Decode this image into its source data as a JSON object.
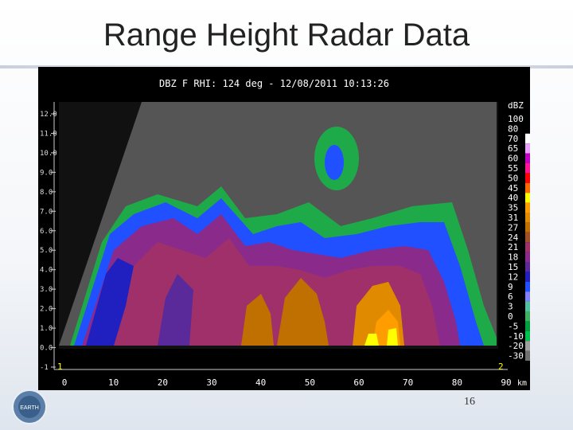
{
  "slide": {
    "title": "Range Height Radar Data",
    "page_number": "16",
    "logo_text": "EARTH"
  },
  "radar": {
    "header": "DBZ F  RHI: 124 deg  -  12/08/2011 10:13:26",
    "y_labels": [
      "12.0",
      "11.0",
      "10.0",
      "9.0",
      "8.0",
      "7.0",
      "6.0",
      "5.0",
      "4.0",
      "3.0",
      "2.0",
      "1.0",
      "0.0",
      "-1"
    ],
    "x_labels": [
      "0",
      "10",
      "20",
      "30",
      "40",
      "50",
      "60",
      "70",
      "80",
      "90"
    ],
    "x_unit": "km",
    "corner_left": "1",
    "corner_right": "2",
    "colorbar": {
      "title": "dBZ",
      "levels": [
        {
          "label": "100",
          "color": "#000000"
        },
        {
          "label": "80",
          "color": "#000000"
        },
        {
          "label": "70",
          "color": "#ffffff"
        },
        {
          "label": "65",
          "color": "#e9a0ff"
        },
        {
          "label": "60",
          "color": "#c000c0"
        },
        {
          "label": "55",
          "color": "#ff1493"
        },
        {
          "label": "50",
          "color": "#ff0000"
        },
        {
          "label": "45",
          "color": "#ff6a00"
        },
        {
          "label": "40",
          "color": "#ffff00"
        },
        {
          "label": "35",
          "color": "#ff9c00"
        },
        {
          "label": "31",
          "color": "#e08a00"
        },
        {
          "label": "27",
          "color": "#c07000"
        },
        {
          "label": "24",
          "color": "#a05028"
        },
        {
          "label": "21",
          "color": "#a0306a"
        },
        {
          "label": "18",
          "color": "#8a2a8a"
        },
        {
          "label": "15",
          "color": "#5a2a9a"
        },
        {
          "label": "12",
          "color": "#2020c0"
        },
        {
          "label": "9",
          "color": "#2050ff"
        },
        {
          "label": "6",
          "color": "#8080ff"
        },
        {
          "label": "3",
          "color": "#50c0a0"
        },
        {
          "label": "0",
          "color": "#40b060"
        },
        {
          "label": "-5",
          "color": "#00a040"
        },
        {
          "label": "-10",
          "color": "#00c050"
        },
        {
          "label": "-20",
          "color": "#a0a0a0"
        },
        {
          "label": "-30",
          "color": "#707070"
        }
      ]
    }
  }
}
